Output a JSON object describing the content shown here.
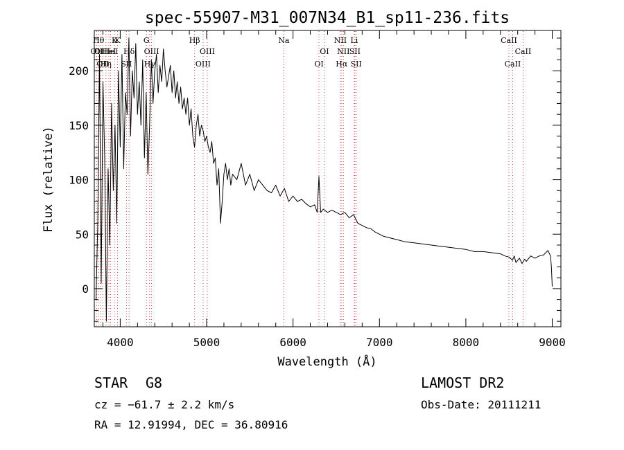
{
  "chart_data": {
    "type": "line",
    "title": "spec-55907-M31_007N34_B1_sp11-236.fits",
    "xlabel": "Wavelength (Å)",
    "ylabel": "Flux (relative)",
    "xlim": [
      3700,
      9100
    ],
    "ylim": [
      -35,
      237
    ],
    "x_ticks": [
      4000,
      5000,
      6000,
      7000,
      8000,
      9000
    ],
    "y_ticks": [
      0,
      50,
      100,
      150,
      200
    ],
    "grid": false,
    "series": [
      {
        "color": "#000000",
        "x": [
          3720,
          3740,
          3760,
          3780,
          3800,
          3820,
          3840,
          3860,
          3880,
          3900,
          3920,
          3940,
          3960,
          3980,
          4000,
          4020,
          4040,
          4060,
          4080,
          4100,
          4120,
          4140,
          4160,
          4180,
          4200,
          4220,
          4240,
          4260,
          4280,
          4300,
          4320,
          4340,
          4360,
          4380,
          4400,
          4420,
          4440,
          4460,
          4480,
          4500,
          4520,
          4540,
          4560,
          4580,
          4600,
          4620,
          4640,
          4660,
          4680,
          4700,
          4720,
          4740,
          4760,
          4780,
          4800,
          4820,
          4840,
          4860,
          4880,
          4900,
          4920,
          4940,
          4960,
          4980,
          5000,
          5020,
          5040,
          5060,
          5080,
          5100,
          5120,
          5140,
          5160,
          5180,
          5200,
          5220,
          5240,
          5260,
          5280,
          5300,
          5350,
          5400,
          5450,
          5500,
          5550,
          5600,
          5650,
          5700,
          5750,
          5800,
          5850,
          5900,
          5950,
          6000,
          6050,
          6100,
          6150,
          6200,
          6250,
          6280,
          6300,
          6320,
          6350,
          6400,
          6450,
          6500,
          6550,
          6600,
          6650,
          6700,
          6750,
          6800,
          6850,
          6900,
          6950,
          7000,
          7050,
          7100,
          7150,
          7200,
          7300,
          7400,
          7500,
          7600,
          7700,
          7800,
          7900,
          8000,
          8100,
          8200,
          8300,
          8400,
          8450,
          8500,
          8540,
          8560,
          8580,
          8620,
          8650,
          8680,
          8700,
          8750,
          8800,
          8850,
          8900,
          8950,
          8980,
          8990,
          9000
        ],
        "y": [
          -10,
          60,
          215,
          5,
          190,
          120,
          -30,
          110,
          40,
          170,
          90,
          150,
          60,
          200,
          130,
          215,
          110,
          180,
          160,
          230,
          140,
          200,
          175,
          225,
          160,
          190,
          150,
          210,
          120,
          180,
          105,
          150,
          210,
          170,
          200,
          215,
          180,
          205,
          190,
          220,
          200,
          185,
          195,
          205,
          180,
          200,
          175,
          190,
          170,
          185,
          165,
          175,
          160,
          175,
          150,
          165,
          140,
          130,
          150,
          160,
          140,
          150,
          145,
          135,
          140,
          130,
          125,
          135,
          115,
          120,
          95,
          110,
          60,
          80,
          105,
          115,
          100,
          110,
          95,
          105,
          100,
          115,
          95,
          105,
          90,
          100,
          95,
          90,
          88,
          95,
          85,
          92,
          80,
          85,
          80,
          82,
          78,
          75,
          77,
          70,
          103,
          70,
          73,
          70,
          72,
          70,
          68,
          70,
          65,
          68,
          60,
          58,
          56,
          55,
          52,
          50,
          48,
          47,
          46,
          45,
          43,
          42,
          41,
          40,
          39,
          38,
          37,
          36,
          34,
          34,
          33,
          32,
          30,
          29,
          26,
          30,
          24,
          28,
          23,
          27,
          25,
          30,
          28,
          30,
          31,
          35,
          30,
          20,
          2
        ]
      }
    ],
    "lines": [
      {
        "wl": 3727,
        "row": 2,
        "label": "OII"
      },
      {
        "wl": 3750,
        "row": 1,
        "label": "Hθ"
      },
      {
        "wl": 3771,
        "row": 2,
        "label": "OII"
      },
      {
        "wl": 3798,
        "row": 3,
        "label": "OII"
      },
      {
        "wl": 3835,
        "row": 3,
        "label": "Hη"
      },
      {
        "wl": 3869,
        "row": 2,
        "label": "HeI"
      },
      {
        "wl": 3889,
        "row": 2,
        "label": "HeI"
      },
      {
        "wl": 3934,
        "row": 1,
        "label": "K"
      },
      {
        "wl": 3969,
        "row": 1,
        "label": "K"
      },
      {
        "wl": 4072,
        "row": 3,
        "label": "SII"
      },
      {
        "wl": 4102,
        "row": 2,
        "label": "Hδ"
      },
      {
        "wl": 4304,
        "row": 1,
        "label": "G"
      },
      {
        "wl": 4340,
        "row": 3,
        "label": "Hγ"
      },
      {
        "wl": 4363,
        "row": 2,
        "label": "OIII"
      },
      {
        "wl": 4861,
        "row": 1,
        "label": "Hβ"
      },
      {
        "wl": 4959,
        "row": 3,
        "label": "OIII"
      },
      {
        "wl": 5007,
        "row": 2,
        "label": "OIII"
      },
      {
        "wl": 5893,
        "row": 1,
        "label": "Na"
      },
      {
        "wl": 6300,
        "row": 3,
        "label": "OI"
      },
      {
        "wl": 6363,
        "row": 2,
        "label": "OI"
      },
      {
        "wl": 6548,
        "row": 1,
        "label": "NII"
      },
      {
        "wl": 6563,
        "row": 3,
        "label": "Hα"
      },
      {
        "wl": 6583,
        "row": 2,
        "label": "NII"
      },
      {
        "wl": 6708,
        "row": 1,
        "label": "Li"
      },
      {
        "wl": 6716,
        "row": 2,
        "label": "SII"
      },
      {
        "wl": 6731,
        "row": 3,
        "label": "SII"
      },
      {
        "wl": 8498,
        "row": 1,
        "label": "CaII"
      },
      {
        "wl": 8542,
        "row": 3,
        "label": "CaII"
      },
      {
        "wl": 8662,
        "row": 2,
        "label": "CaII"
      }
    ]
  },
  "info": {
    "object_class": "STAR",
    "subclass": "G8",
    "survey": "LAMOST DR2",
    "cz": "cz = −61.7 ± 2.2 km/s",
    "obs_date": "Obs-Date: 20111211",
    "coords": "RA =   12.91994, DEC =   36.80916"
  }
}
